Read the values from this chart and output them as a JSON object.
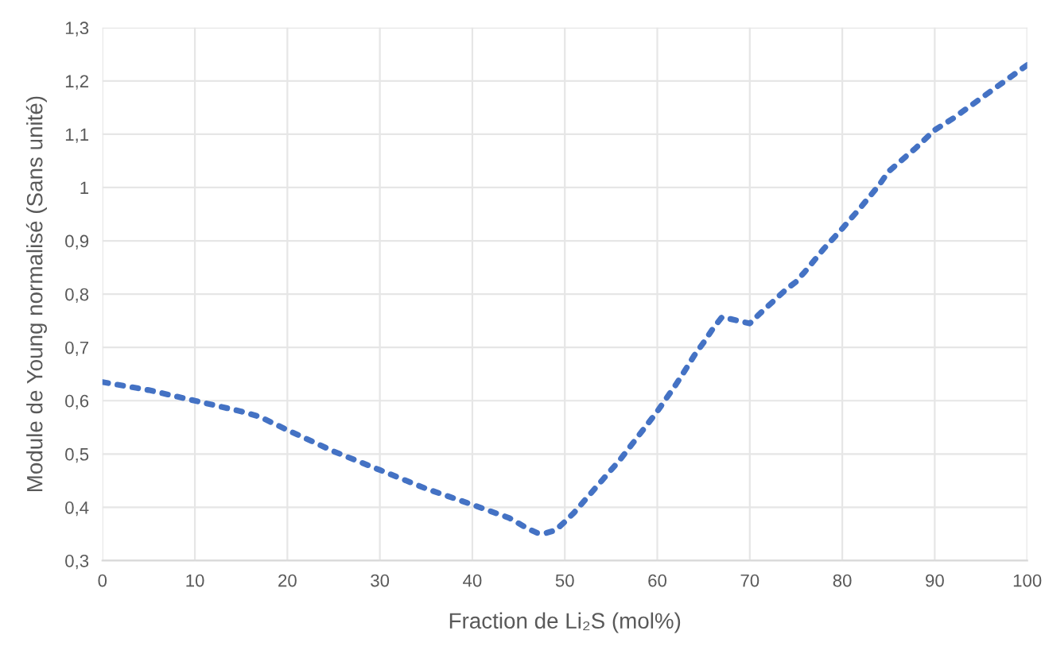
{
  "chart_data": {
    "type": "line",
    "xlabel": "Fraction de Li₂S (mol%)",
    "ylabel": "Module de Young normalisé (Sans unité)",
    "x": [
      0,
      5,
      10,
      15,
      17,
      20,
      25,
      30,
      35,
      40,
      44,
      46,
      47,
      48,
      49,
      50,
      51,
      52,
      54,
      56,
      58,
      60,
      62,
      63,
      64,
      65,
      66,
      67,
      68,
      69,
      70,
      71,
      72,
      74,
      75,
      76,
      78,
      80,
      82,
      84,
      85,
      86,
      88,
      90,
      92,
      94,
      96,
      98,
      100
    ],
    "series": [
      {
        "color": "#4472c4",
        "values": [
          0.635,
          0.62,
          0.6,
          0.58,
          0.57,
          0.545,
          0.505,
          0.47,
          0.435,
          0.405,
          0.38,
          0.36,
          0.352,
          0.352,
          0.357,
          0.373,
          0.39,
          0.41,
          0.45,
          0.49,
          0.535,
          0.58,
          0.63,
          0.657,
          0.685,
          0.709,
          0.735,
          0.757,
          0.753,
          0.749,
          0.745,
          0.762,
          0.778,
          0.81,
          0.823,
          0.843,
          0.885,
          0.923,
          0.963,
          1.005,
          1.03,
          1.045,
          1.075,
          1.108,
          1.13,
          1.155,
          1.18,
          1.205,
          1.23
        ]
      }
    ],
    "line_style": "dotted",
    "xlim": [
      0,
      100
    ],
    "ylim": [
      0.3,
      1.3
    ],
    "xticks": [
      0,
      10,
      20,
      30,
      40,
      50,
      60,
      70,
      80,
      90,
      100
    ],
    "yticks": [
      {
        "value": 0.3,
        "label": "0,3"
      },
      {
        "value": 0.4,
        "label": "0,4"
      },
      {
        "value": 0.5,
        "label": "0,5"
      },
      {
        "value": 0.6,
        "label": "0,6"
      },
      {
        "value": 0.7,
        "label": "0,7"
      },
      {
        "value": 0.8,
        "label": "0,8"
      },
      {
        "value": 0.9,
        "label": "0,9"
      },
      {
        "value": 1,
        "label": "1"
      },
      {
        "value": 1.1,
        "label": "1,1"
      },
      {
        "value": 1.2,
        "label": "1,2"
      },
      {
        "value": 1.3,
        "label": "1,3"
      }
    ],
    "grid": true
  }
}
